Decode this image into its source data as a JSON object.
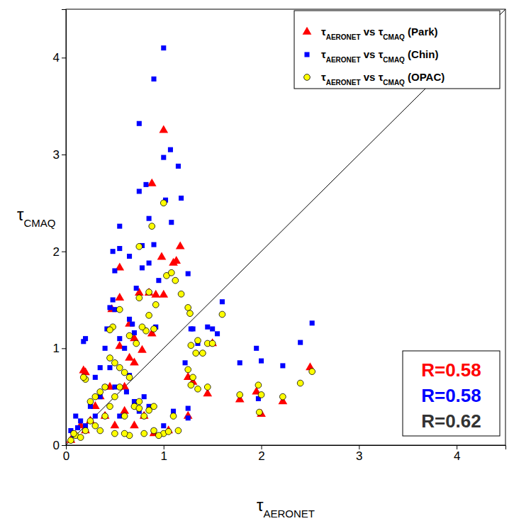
{
  "chart_data": {
    "type": "scatter",
    "x_label": "τAERONET",
    "y_label": "τCMAQ",
    "xlim": [
      0,
      4.5
    ],
    "ylim": [
      0,
      4.5
    ],
    "xticks": [
      0,
      1,
      2,
      3,
      4
    ],
    "yticks": [
      0,
      1,
      2,
      3,
      4
    ],
    "legend": "upper right",
    "series": [
      {
        "name": "τAERONET vs τCMAQ (Park)",
        "color": "#ff0000",
        "marker": "triangle",
        "x": [
          1.0,
          0.88,
          1.17,
          0.98,
          1.1,
          1.13,
          0.55,
          0.85,
          0.75,
          0.92,
          1.0,
          0.55,
          0.47,
          0.88,
          0.7,
          0.65,
          0.78,
          0.55,
          0.2,
          0.18,
          0.65,
          0.7,
          0.6,
          1.25,
          1.3,
          1.45,
          1.5,
          1.78,
          1.95,
          2.0,
          2.22,
          2.5,
          0.3,
          0.35,
          0.4,
          0.2,
          0.1,
          0.15,
          0.5,
          0.7,
          0.9,
          1.05,
          0.45,
          0.25,
          0.05,
          0.6,
          1.25,
          0.8
        ],
        "values": [
          3.25,
          2.7,
          2.05,
          1.94,
          1.88,
          1.9,
          1.83,
          1.57,
          1.57,
          1.55,
          1.55,
          1.52,
          1.4,
          1.15,
          1.1,
          1.25,
          0.98,
          1.02,
          0.75,
          0.77,
          0.9,
          0.85,
          0.6,
          0.7,
          0.65,
          0.53,
          1.05,
          0.47,
          0.55,
          0.32,
          0.45,
          0.8,
          0.4,
          0.5,
          0.3,
          0.15,
          0.1,
          0.2,
          0.2,
          0.2,
          0.12,
          0.15,
          0.6,
          0.25,
          0.05,
          0.35,
          0.3,
          0.3
        ]
      },
      {
        "name": "τAERONET vs τCMAQ (Chin)",
        "color": "#0000ff",
        "marker": "square",
        "x": [
          1.0,
          0.9,
          0.75,
          1.07,
          1.0,
          1.15,
          0.75,
          0.82,
          1.02,
          1.18,
          0.85,
          0.55,
          0.9,
          0.78,
          0.55,
          0.48,
          1.08,
          0.65,
          0.85,
          0.78,
          0.5,
          1.25,
          0.95,
          0.72,
          1.3,
          1.6,
          1.45,
          1.5,
          1.55,
          1.78,
          1.95,
          2.0,
          2.22,
          2.4,
          2.52,
          1.97,
          0.65,
          0.68,
          0.48,
          0.45,
          0.5,
          0.42,
          0.55,
          0.4,
          0.35,
          0.2,
          0.18,
          0.6,
          0.3,
          0.5,
          0.45,
          0.62,
          0.7,
          0.8,
          0.75,
          0.55,
          0.1,
          0.15,
          0.2,
          0.25,
          0.3,
          0.35,
          0.4,
          0.05,
          0.08,
          0.12,
          1.1,
          1.25,
          1.25,
          0.9,
          1.0,
          0.85,
          0.65,
          1.22,
          1.35,
          1.28,
          0.92,
          0.7
        ],
        "values": [
          4.1,
          3.78,
          3.32,
          3.05,
          2.97,
          2.88,
          2.62,
          2.69,
          2.53,
          2.55,
          2.34,
          2.26,
          2.07,
          2.06,
          2.03,
          2.0,
          2.3,
          1.95,
          1.88,
          1.83,
          1.8,
          1.77,
          1.7,
          1.62,
          1.2,
          1.48,
          1.22,
          1.2,
          1.15,
          0.85,
          1.0,
          0.87,
          0.82,
          1.06,
          1.26,
          0.48,
          1.3,
          1.25,
          1.5,
          1.42,
          1.4,
          1.2,
          1.1,
          1.0,
          0.8,
          1.1,
          1.07,
          1.0,
          0.7,
          0.6,
          0.8,
          0.55,
          0.45,
          0.5,
          0.35,
          0.3,
          0.3,
          0.25,
          0.2,
          0.4,
          0.3,
          0.5,
          0.6,
          0.15,
          0.1,
          0.18,
          0.35,
          0.38,
          0.28,
          0.15,
          0.2,
          0.4,
          0.72,
          0.85,
          1.05,
          1.2,
          1.22,
          1.16
        ]
      },
      {
        "name": "τAERONET vs τCMAQ (OPAC)",
        "color": "#ffff00",
        "marker": "circle",
        "x": [
          1.0,
          0.88,
          0.75,
          1.03,
          1.08,
          1.12,
          0.55,
          0.48,
          0.45,
          0.85,
          0.75,
          0.92,
          1.18,
          1.25,
          1.27,
          0.85,
          0.9,
          0.82,
          0.65,
          0.72,
          0.78,
          1.28,
          1.33,
          1.35,
          1.4,
          1.45,
          1.5,
          1.6,
          1.45,
          1.35,
          1.3,
          1.25,
          1.28,
          1.78,
          1.97,
          1.98,
          2.0,
          2.22,
          2.4,
          2.52,
          0.2,
          0.18,
          0.45,
          0.5,
          0.55,
          0.6,
          0.65,
          0.4,
          0.35,
          0.3,
          0.25,
          0.55,
          0.5,
          0.45,
          0.7,
          0.75,
          0.8,
          0.85,
          0.9,
          0.6,
          0.4,
          0.3,
          0.2,
          0.1,
          0.15,
          0.05,
          0.08,
          0.25,
          0.35,
          0.5,
          0.65,
          0.8,
          0.9,
          1.0,
          1.05,
          1.1,
          1.15,
          0.95,
          0.75,
          0.6
        ],
        "values": [
          2.5,
          2.26,
          2.05,
          1.75,
          1.78,
          1.7,
          1.4,
          1.22,
          1.19,
          1.58,
          1.52,
          1.45,
          1.56,
          1.42,
          1.36,
          1.34,
          1.2,
          1.18,
          1.13,
          1.05,
          1.22,
          1.03,
          0.95,
          1.08,
          0.95,
          1.05,
          1.05,
          1.35,
          0.6,
          0.58,
          0.7,
          0.78,
          0.62,
          0.52,
          0.62,
          0.34,
          0.52,
          0.5,
          0.64,
          0.76,
          0.68,
          0.7,
          0.9,
          0.85,
          0.8,
          0.75,
          0.7,
          0.6,
          0.55,
          0.5,
          0.45,
          0.6,
          0.5,
          0.4,
          0.4,
          0.38,
          0.3,
          0.36,
          0.4,
          0.3,
          0.3,
          0.2,
          0.15,
          0.1,
          0.08,
          0.05,
          0.12,
          0.25,
          0.15,
          0.12,
          0.1,
          0.12,
          0.15,
          0.12,
          0.14,
          0.3,
          0.15,
          0.1,
          0.45,
          0.12
        ]
      }
    ],
    "annotations": [
      {
        "text": "R=0.58",
        "color": "#ff0000"
      },
      {
        "text": "R=0.58",
        "color": "#0000ff"
      },
      {
        "text": "R=0.62",
        "color": "#333333"
      }
    ]
  }
}
